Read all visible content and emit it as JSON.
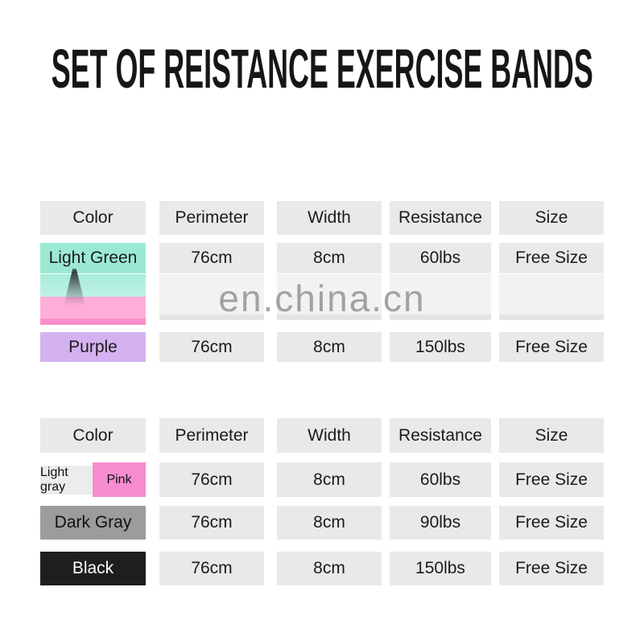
{
  "title": "SET OF REISTANCE EXERCISE BANDS",
  "watermark": "en.china.cn",
  "column_headers": [
    "Color",
    "Perimeter",
    "Width",
    "Resistance",
    "Size"
  ],
  "table1": {
    "rows": [
      {
        "color": "Light Green",
        "perimeter": "76cm",
        "width": "8cm",
        "resistance": "60lbs",
        "size": "Free Size"
      },
      {
        "color": "Purple",
        "perimeter": "76cm",
        "width": "8cm",
        "resistance": "150lbs",
        "size": "Free Size"
      }
    ],
    "obscured_row": {
      "note_visible_text": ""
    }
  },
  "table2": {
    "rows": [
      {
        "color_left": "Light gray",
        "color_right": "Pink",
        "perimeter": "76cm",
        "width": "8cm",
        "resistance": "60lbs",
        "size": "Free Size"
      },
      {
        "color": "Dark Gray",
        "perimeter": "76cm",
        "width": "8cm",
        "resistance": "90lbs",
        "size": "Free Size"
      },
      {
        "color": "Black",
        "perimeter": "76cm",
        "width": "8cm",
        "resistance": "150lbs",
        "size": "Free Size"
      }
    ]
  },
  "colors": {
    "light_green_swatch": "#9ce9d3",
    "light_green_swatch_lower": "#bff2e7",
    "pink_swatch": "#ffaed9",
    "pink_swatch_dark_strip": "#fb8fc9",
    "purple_swatch": "#d4b2f1",
    "pink_cell_table2": "#f78cd0",
    "light_gray_cell_table2": "#ececec",
    "dark_gray_swatch": "#9c9c9c",
    "black_swatch": "#1e1e1e",
    "table_cell_gray": "#e9e9e9",
    "obscured_cell_gray": "#f2f2f2",
    "watermark_gray": "#9a9a9a",
    "title_black": "#161616"
  }
}
